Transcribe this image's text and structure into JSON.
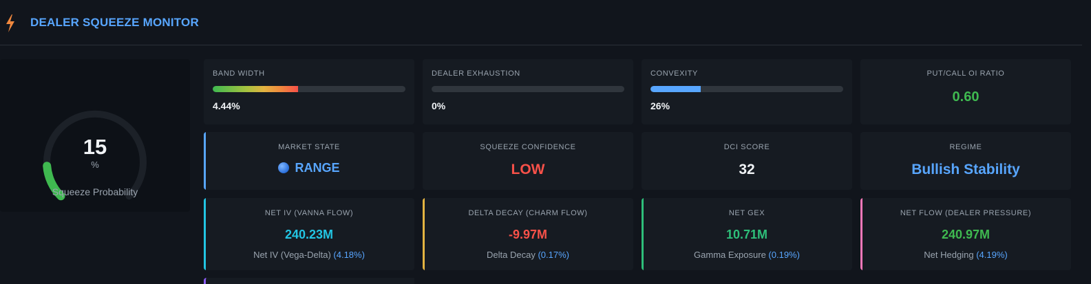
{
  "header": {
    "title": "DEALER SQUEEZE MONITOR",
    "icon": "bolt-icon"
  },
  "gauge": {
    "value": "15",
    "unit": "%",
    "label": "Squeeze Probability",
    "percent": 15,
    "color": "#3fb950"
  },
  "bars": [
    {
      "label": "BAND WIDTH",
      "value": "4.44%",
      "fill_percent": 44.4,
      "fill": "gradient"
    },
    {
      "label": "DEALER EXHAUSTION",
      "value": "0%",
      "fill_percent": 0,
      "fill": "#58a6ff"
    },
    {
      "label": "CONVEXITY",
      "value": "26%",
      "fill_percent": 26,
      "fill": "#58a6ff"
    }
  ],
  "ratio": {
    "label": "PUT/CALL OI RATIO",
    "value": "0.60",
    "color": "#3fb950"
  },
  "status": [
    {
      "label": "MARKET STATE",
      "value": "RANGE",
      "color": "#58a6ff"
    },
    {
      "label": "SQUEEZE CONFIDENCE",
      "value": "LOW",
      "color": "#f85149"
    },
    {
      "label": "DCI SCORE",
      "value": "32",
      "color": "#f0f3f6"
    },
    {
      "label": "REGIME",
      "value": "Bullish Stability",
      "color": "#58a6ff"
    }
  ],
  "flows": [
    {
      "label": "NET IV (VANNA FLOW)",
      "value": "240.23M",
      "sub": "Net IV (Vega-Delta)",
      "pct": "(4.18%)",
      "color": "#22c5e3",
      "accent": "#22c5e3"
    },
    {
      "label": "DELTA DECAY (CHARM FLOW)",
      "value": "-9.97M",
      "sub": "Delta Decay",
      "pct": "(0.17%)",
      "color": "#f85149",
      "accent": "#e3b341"
    },
    {
      "label": "NET GEX",
      "value": "10.71M",
      "sub": "Gamma Exposure",
      "pct": "(0.19%)",
      "color": "#2ebf7a",
      "accent": "#2ebf7a"
    },
    {
      "label": "NET FLOW (DEALER PRESSURE)",
      "value": "240.97M",
      "sub": "Net Hedging",
      "pct": "(4.19%)",
      "color": "#3fb950",
      "accent": "#f778ba"
    }
  ]
}
